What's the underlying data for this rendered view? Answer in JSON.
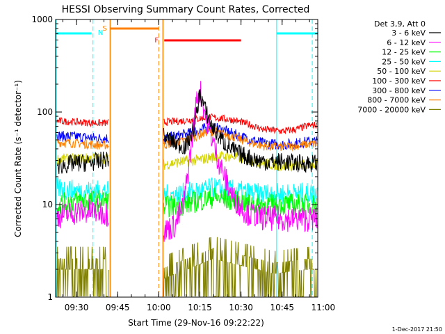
{
  "chart_data": {
    "type": "line",
    "title": "HESSI Observing Summary Count Rates, Corrected",
    "xlabel": "Start Time (29-Nov-16 09:22:22)",
    "ylabel": "Corrected Count Rate (s⁻¹ detector⁻¹)",
    "y_scale": "log",
    "xlim": [
      "09:22:22",
      "10:58:00"
    ],
    "ylim": [
      1,
      1000
    ],
    "x_ticks": [
      "09:30",
      "09:45",
      "10:00",
      "10:15",
      "10:30",
      "10:45",
      "11:00"
    ],
    "y_ticks": [
      "1",
      "10",
      "100",
      "1000"
    ],
    "legend_title": "Det 3,9, Att 0",
    "legend_position": "right",
    "series": [
      {
        "name": "3 - 6 keV",
        "color": "#000000",
        "x": [
          "09:23",
          "09:30",
          "09:38",
          "10:02",
          "10:06",
          "10:10",
          "10:13",
          "10:15",
          "10:17",
          "10:20",
          "10:24",
          "10:28",
          "10:32",
          "10:36",
          "10:40",
          "10:45",
          "10:50",
          "10:55"
        ],
        "values": [
          26,
          28,
          29,
          54,
          46,
          42,
          70,
          160,
          105,
          64,
          46,
          37,
          33,
          30,
          29,
          29,
          28,
          28
        ]
      },
      {
        "name": "6 - 12 keV",
        "color": "#ff00ff",
        "x": [
          "09:23",
          "09:30",
          "09:38",
          "10:02",
          "10:06",
          "10:09",
          "10:11",
          "10:13",
          "10:14",
          "10:15",
          "10:17",
          "10:19",
          "10:21",
          "10:24",
          "10:27",
          "10:32",
          "10:38",
          "10:45",
          "10:50",
          "10:55"
        ],
        "values": [
          7.5,
          8.3,
          8.5,
          5.2,
          6,
          9.8,
          27,
          85,
          145,
          175,
          95,
          58,
          35,
          20,
          12,
          8.2,
          7.2,
          7,
          7,
          7
        ]
      },
      {
        "name": "12 - 25 keV",
        "color": "#00ff00",
        "x": [
          "09:23",
          "09:30",
          "09:38",
          "10:02",
          "10:08",
          "10:12",
          "10:16",
          "10:20",
          "10:24",
          "10:30",
          "10:36",
          "10:45",
          "10:55"
        ],
        "values": [
          10,
          11,
          11,
          9.5,
          9.8,
          10.5,
          11.2,
          12,
          11.5,
          10.6,
          10,
          10,
          10
        ]
      },
      {
        "name": "25 - 50 keV",
        "color": "#00ffff",
        "x": [
          "09:23",
          "09:30",
          "09:38",
          "10:02",
          "10:08",
          "10:12",
          "10:16",
          "10:20",
          "10:24",
          "10:30",
          "10:36",
          "10:45",
          "10:55"
        ],
        "values": [
          15,
          14,
          14,
          12.5,
          13,
          13.5,
          14.2,
          15,
          14.5,
          13.8,
          13,
          13,
          13.2
        ]
      },
      {
        "name": "50 - 100 keV",
        "color": "#d4d400",
        "x": [
          "09:23",
          "09:30",
          "09:38",
          "10:02",
          "10:08",
          "10:14",
          "10:18",
          "10:22",
          "10:27",
          "10:32",
          "10:38",
          "10:45",
          "10:55"
        ],
        "values": [
          31,
          31,
          32,
          27,
          29,
          30,
          32,
          33,
          33,
          31,
          28,
          26,
          27
        ]
      },
      {
        "name": "100 - 300 keV",
        "color": "#ff0000",
        "x": [
          "09:23",
          "09:30",
          "09:38",
          "10:02",
          "10:08",
          "10:14",
          "10:18",
          "10:22",
          "10:27",
          "10:32",
          "10:38",
          "10:45",
          "10:50",
          "10:55"
        ],
        "values": [
          80,
          78,
          76,
          78,
          80,
          84,
          88,
          86,
          82,
          75,
          65,
          62,
          65,
          72
        ]
      },
      {
        "name": "300 - 800 keV",
        "color": "#0000ff",
        "x": [
          "09:23",
          "09:30",
          "09:38",
          "10:02",
          "10:08",
          "10:14",
          "10:18",
          "10:22",
          "10:27",
          "10:32",
          "10:38",
          "10:45",
          "10:55"
        ],
        "values": [
          55,
          54,
          52,
          52,
          56,
          62,
          68,
          66,
          58,
          52,
          46,
          44,
          48
        ]
      },
      {
        "name": "800 - 7000 keV",
        "color": "#ff8000",
        "x": [
          "09:23",
          "09:30",
          "09:38",
          "10:02",
          "10:08",
          "10:14",
          "10:18",
          "10:22",
          "10:27",
          "10:32",
          "10:38",
          "10:45",
          "10:55"
        ],
        "values": [
          47,
          46,
          44,
          44,
          48,
          55,
          62,
          60,
          54,
          48,
          43,
          42,
          45
        ]
      },
      {
        "name": "7000 - 20000 keV",
        "color": "#808000",
        "x": [
          "09:23",
          "09:40",
          "10:02",
          "10:20",
          "10:30",
          "10:42",
          "10:55"
        ],
        "values": [
          2,
          2,
          1.6,
          2.6,
          2.2,
          1.8,
          2
        ]
      }
    ],
    "annotations": [
      {
        "label": "N",
        "color": "#00ffff",
        "x": "09:36"
      },
      {
        "label": "S",
        "color": "#ff8000",
        "x": "09:42"
      },
      {
        "label": "F",
        "color": "#ff0000",
        "x": "10:00"
      }
    ],
    "footer_date": "1-Dec-2017 21:50"
  }
}
